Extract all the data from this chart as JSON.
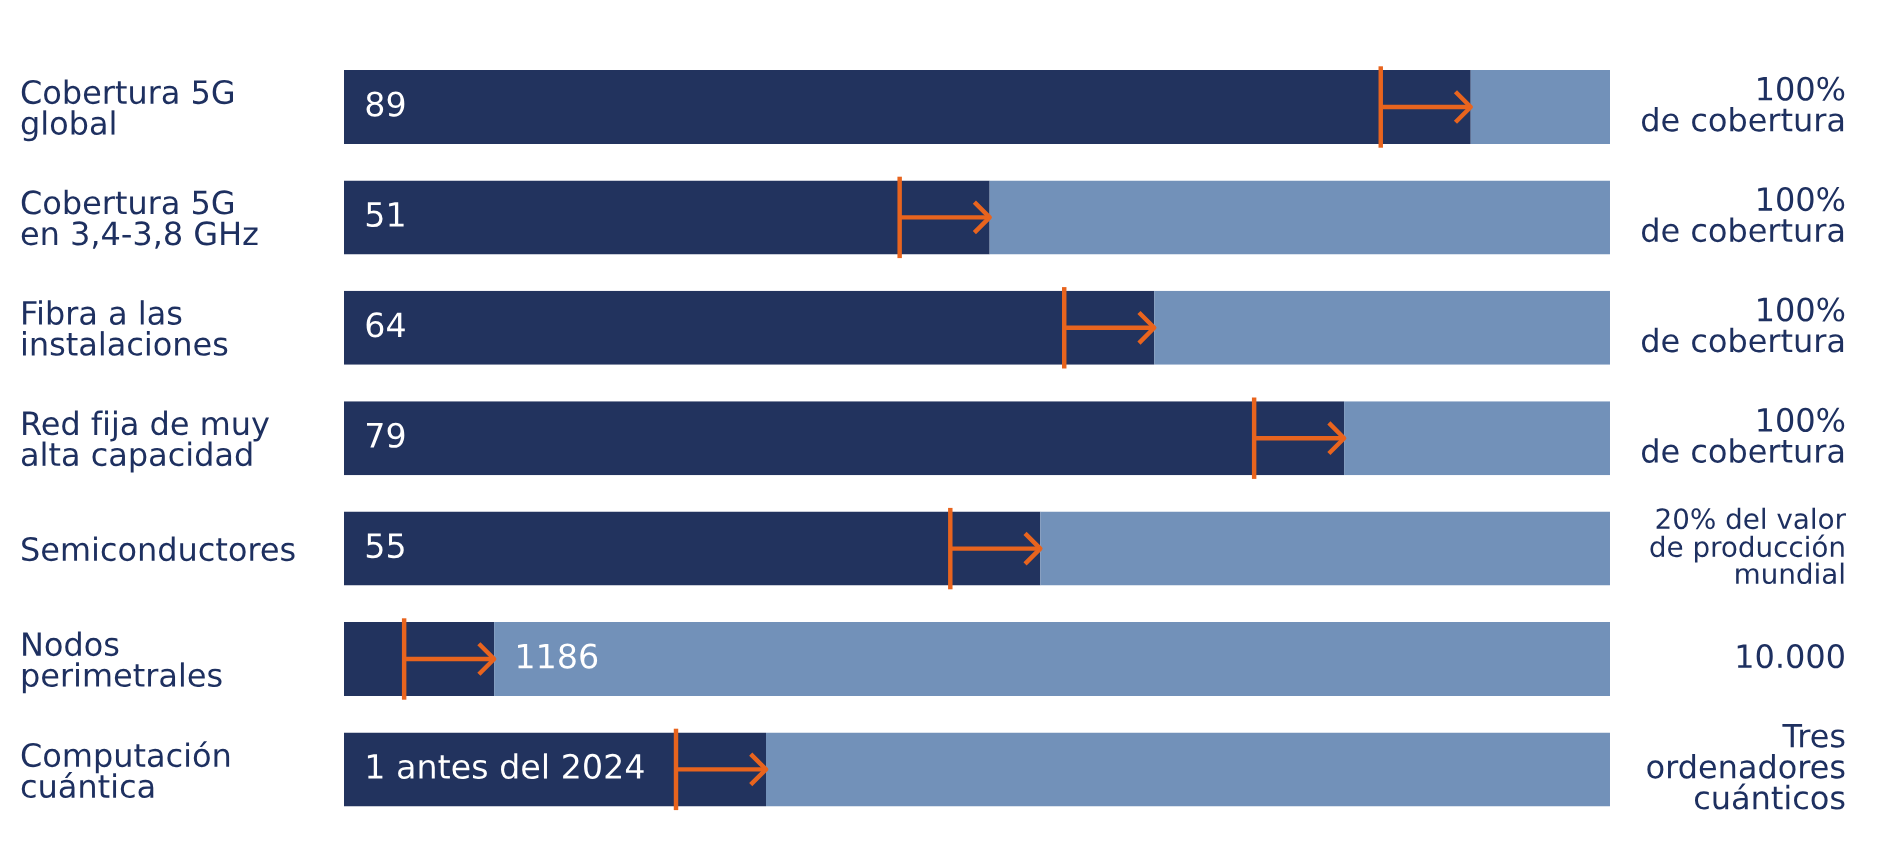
{
  "chart_data": [
    {
      "type": "bar",
      "orientation": "horizontal",
      "stacked": true,
      "categories": [
        "Cobertura 5G\nglobal"
      ],
      "series": [
        {
          "color": "#22335e",
          "values": [
            89
          ],
          "value_labels": [
            "89"
          ]
        },
        {
          "color": "#7291b9",
          "values": [
            11
          ]
        }
      ],
      "xlim": [
        0,
        100
      ],
      "annotations": [
        "100%\nde cobertura"
      ],
      "tick_labels": "y"
    },
    {
      "type": "bar",
      "orientation": "horizontal",
      "stacked": true,
      "categories": [
        "Cobertura 5G\nen 3,4-3,8 GHz"
      ],
      "series": [
        {
          "color": "#22335e",
          "values": [
            51
          ],
          "value_labels": [
            "51"
          ]
        },
        {
          "color": "#7291b9",
          "values": [
            49
          ]
        }
      ],
      "xlim": [
        0,
        100
      ],
      "annotations": [
        "100%\nde cobertura"
      ],
      "tick_labels": "y"
    },
    {
      "type": "bar",
      "orientation": "horizontal",
      "stacked": true,
      "categories": [
        "Fibra a las\ninstalaciones"
      ],
      "series": [
        {
          "color": "#22335e",
          "values": [
            64
          ],
          "value_labels": [
            "64"
          ]
        },
        {
          "color": "#7291b9",
          "values": [
            36
          ]
        }
      ],
      "xlim": [
        0,
        100
      ],
      "annotations": [
        "100%\nde cobertura"
      ],
      "tick_labels": "y"
    },
    {
      "type": "bar",
      "orientation": "horizontal",
      "stacked": true,
      "categories": [
        "Red fija de muy\nalta capacidad"
      ],
      "series": [
        {
          "color": "#22335e",
          "values": [
            79
          ],
          "value_labels": [
            "79"
          ]
        },
        {
          "color": "#7291b9",
          "values": [
            21
          ]
        }
      ],
      "xlim": [
        0,
        100
      ],
      "annotations": [
        "100%\nde cobertura"
      ],
      "tick_labels": "y"
    },
    {
      "type": "bar",
      "orientation": "horizontal",
      "stacked": true,
      "categories": [
        "Semiconductores"
      ],
      "series": [
        {
          "color": "#22335e",
          "values": [
            55
          ],
          "value_labels": [
            "55"
          ]
        },
        {
          "color": "#7291b9",
          "values": [
            45
          ]
        }
      ],
      "xlim": [
        0,
        100
      ],
      "annotations": [
        "20% del valor\nde producción\nmundial"
      ],
      "tick_labels": "y"
    },
    {
      "type": "bar",
      "orientation": "horizontal",
      "stacked": true,
      "categories": [
        "Nodos\nperimetrales"
      ],
      "series": [
        {
          "color": "#22335e",
          "values": [
            1186
          ],
          "value_labels": [
            "1186"
          ]
        },
        {
          "color": "#7291b9",
          "values": [
            8814
          ]
        }
      ],
      "xlim": [
        0,
        10000
      ],
      "annotations": [
        "10.000"
      ],
      "tick_labels": "y"
    },
    {
      "type": "bar",
      "orientation": "horizontal",
      "stacked": true,
      "categories": [
        "Computación\ncuántica"
      ],
      "series": [
        {
          "color": "#22335e",
          "values": [
            1
          ],
          "value_labels": [
            "1 antes del 2024"
          ]
        },
        {
          "color": "#7291b9",
          "values": [
            2
          ]
        }
      ],
      "xlim": [
        0,
        3
      ],
      "annotations": [
        "Tres\nordenadores\ncuánticos"
      ],
      "tick_labels": "y"
    }
  ]
}
